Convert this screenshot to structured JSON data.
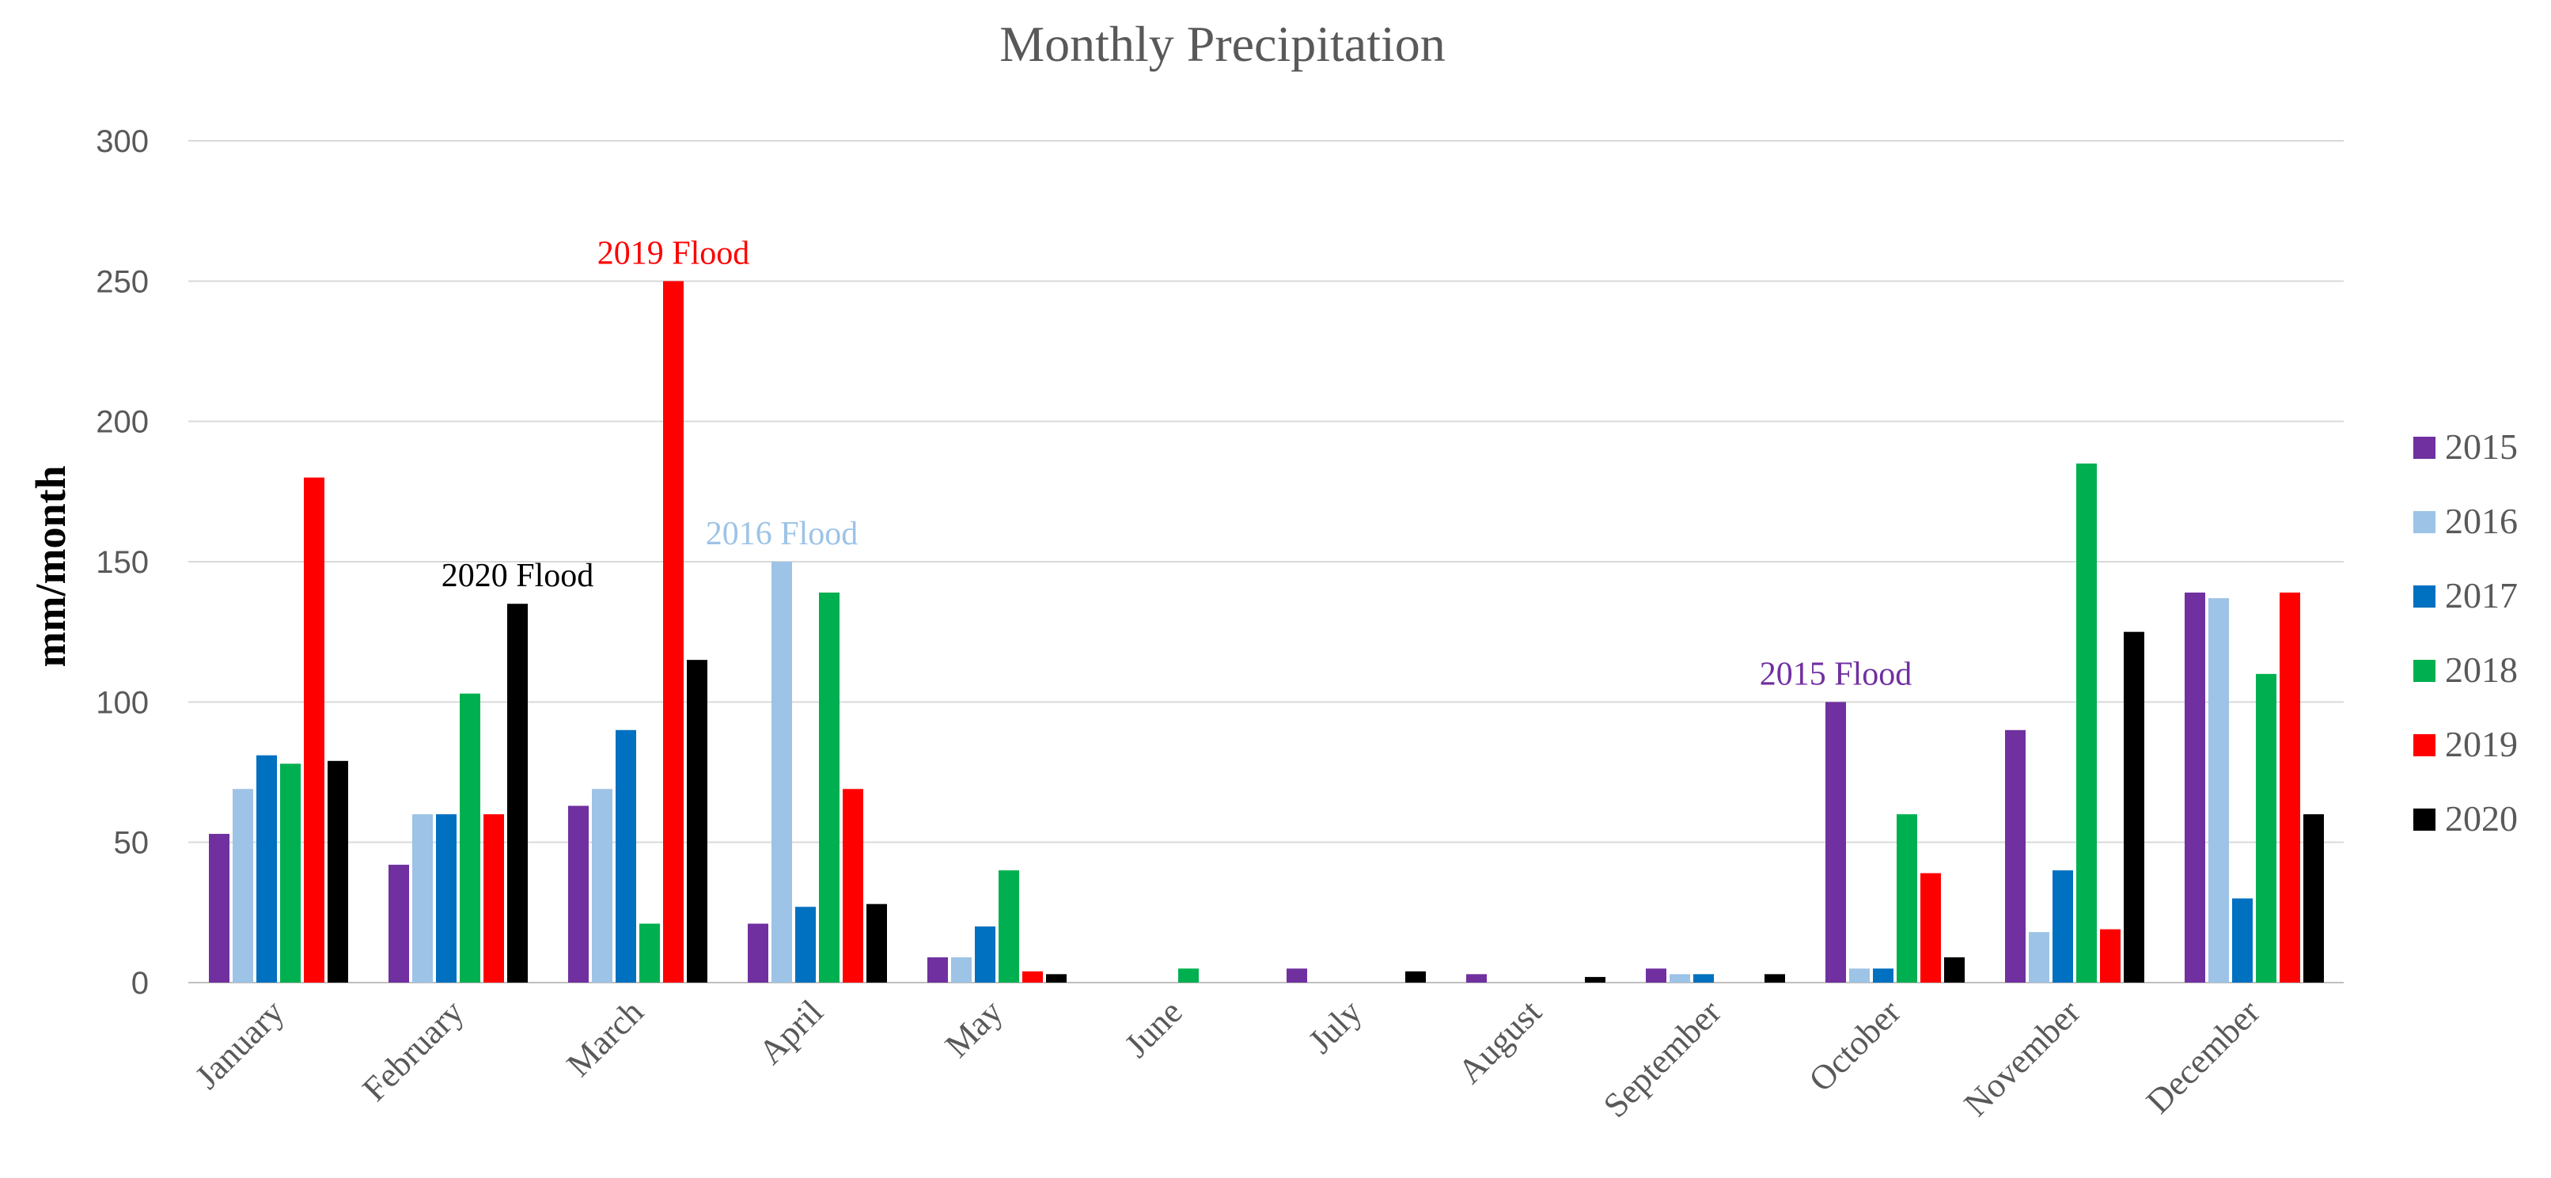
{
  "chart_data": {
    "type": "bar",
    "title": "Monthly Precipitation",
    "xlabel": "",
    "ylabel": "mm/month",
    "ylim": [
      0,
      300
    ],
    "yticks": [
      0,
      50,
      100,
      150,
      200,
      250,
      300
    ],
    "grid": true,
    "legend_position": "right",
    "categories": [
      "January",
      "February",
      "March",
      "April",
      "May",
      "June",
      "July",
      "August",
      "September",
      "October",
      "November",
      "December"
    ],
    "series": [
      {
        "name": "2015",
        "color": "#7030A0",
        "values": [
          53,
          42,
          63,
          21,
          9,
          0,
          5,
          3,
          5,
          100,
          90,
          139
        ]
      },
      {
        "name": "2016",
        "color": "#9DC3E6",
        "values": [
          69,
          60,
          69,
          150,
          9,
          0,
          0,
          0,
          3,
          5,
          18,
          137
        ]
      },
      {
        "name": "2017",
        "color": "#0070C0",
        "values": [
          81,
          60,
          90,
          27,
          20,
          0,
          0,
          0,
          3,
          5,
          40,
          30
        ]
      },
      {
        "name": "2018",
        "color": "#00B050",
        "values": [
          78,
          103,
          21,
          139,
          40,
          5,
          0,
          0,
          0,
          60,
          185,
          110
        ]
      },
      {
        "name": "2019",
        "color": "#FF0000",
        "values": [
          180,
          60,
          250,
          69,
          4,
          0,
          0,
          0,
          0,
          39,
          19,
          139
        ]
      },
      {
        "name": "2020",
        "color": "#000000",
        "values": [
          79,
          135,
          115,
          28,
          3,
          0,
          4,
          2,
          3,
          9,
          125,
          60
        ]
      }
    ],
    "annotations": [
      {
        "text": "2019 Flood",
        "color": "#FF0000",
        "category": "March",
        "series": "2019"
      },
      {
        "text": "2020 Flood",
        "color": "#000000",
        "category": "February",
        "series": "2020"
      },
      {
        "text": "2016 Flood",
        "color": "#9DC3E6",
        "category": "April",
        "series": "2016"
      },
      {
        "text": "2015 Flood",
        "color": "#7030A0",
        "category": "October",
        "series": "2015"
      }
    ]
  }
}
